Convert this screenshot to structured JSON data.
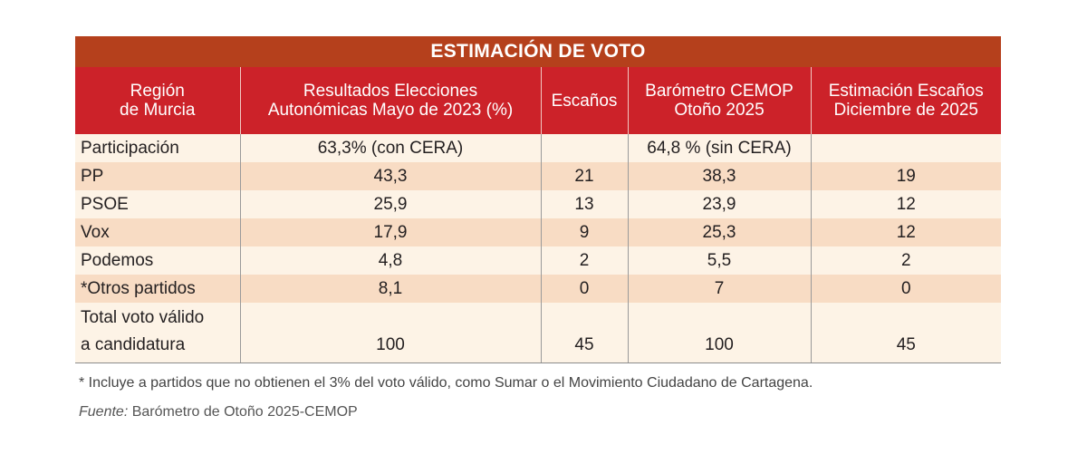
{
  "table": {
    "title": "ESTIMACIÓN DE VOTO",
    "headers": [
      [
        "Región",
        "de Murcia"
      ],
      [
        "Resultados Elecciones",
        "Autonómicas Mayo de 2023 (%)"
      ],
      [
        "Escaños"
      ],
      [
        "Barómetro CEMOP",
        "Otoño 2025"
      ],
      [
        "Estimación Escaños",
        "Diciembre de 2025"
      ]
    ],
    "rows": [
      [
        [
          "Participación"
        ],
        "63,3% (con CERA)",
        null,
        "64,8 % (sin CERA)",
        null
      ],
      [
        [
          "PP"
        ],
        "43,3",
        "21",
        "38,3",
        "19"
      ],
      [
        [
          "PSOE"
        ],
        "25,9",
        "13",
        "23,9",
        "12"
      ],
      [
        [
          "Vox"
        ],
        "17,9",
        "9",
        "25,3",
        "12"
      ],
      [
        [
          "Podemos"
        ],
        "4,8",
        "2",
        "5,5",
        "2"
      ],
      [
        [
          "*Otros partidos"
        ],
        "8,1",
        "0",
        "7",
        "0"
      ],
      [
        [
          "Total voto válido",
          "a candidatura"
        ],
        "100",
        "45",
        "100",
        "45"
      ]
    ]
  },
  "footnote": "* Incluye a partidos que no obtienen el 3% del voto válido, como Sumar o el Movimiento Ciudadano de Cartagena.",
  "source": {
    "label": "Fuente:",
    "text": "Barómetro de Otoño 2025-CEMOP"
  }
}
